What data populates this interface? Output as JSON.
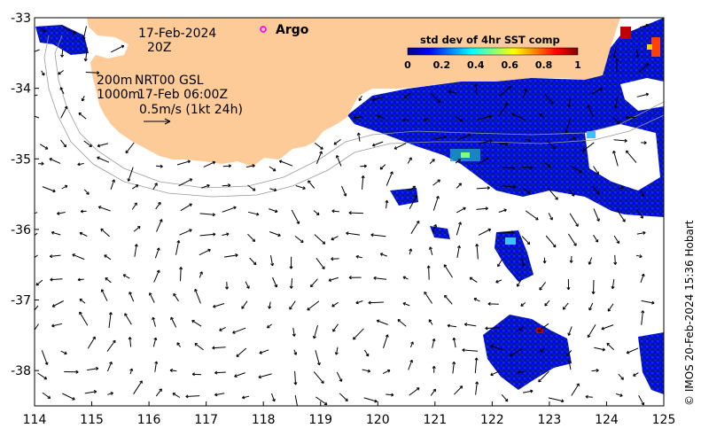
{
  "map": {
    "lon_range": [
      114,
      125
    ],
    "lat_range": [
      -38.5,
      -33
    ],
    "x_ticks": [
      114,
      115,
      116,
      117,
      118,
      119,
      120,
      121,
      122,
      123,
      124,
      125
    ],
    "y_ticks": [
      -33,
      -34,
      -35,
      -36,
      -37,
      -38
    ],
    "land_color": "#FCCB98",
    "contour_color": "#9a9a9a",
    "arrow_color": "#000000"
  },
  "annotations": {
    "date": "17-Feb-2024",
    "hour": "20Z",
    "depth_200": "200m",
    "depth_1000": "1000m",
    "product": "NRT00 GSL",
    "product_time": "17-Feb 06:00Z",
    "scale_label": "0.5m/s (1kt 24h)"
  },
  "legend": {
    "argo_label": "Argo",
    "argo_color": "#ff00ff"
  },
  "colorbar": {
    "title": "std dev of 4hr SST comp",
    "ticks": [
      "0",
      "0.2",
      "0.4",
      "0.6",
      "0.8",
      "1"
    ],
    "colors": [
      "#00008f",
      "#0000ff",
      "#0080ff",
      "#00ffff",
      "#80ff80",
      "#ffff00",
      "#ff8000",
      "#ff0000",
      "#800000"
    ]
  },
  "credit": "© IMOS 20-Feb-2024 15:36 Hobart"
}
